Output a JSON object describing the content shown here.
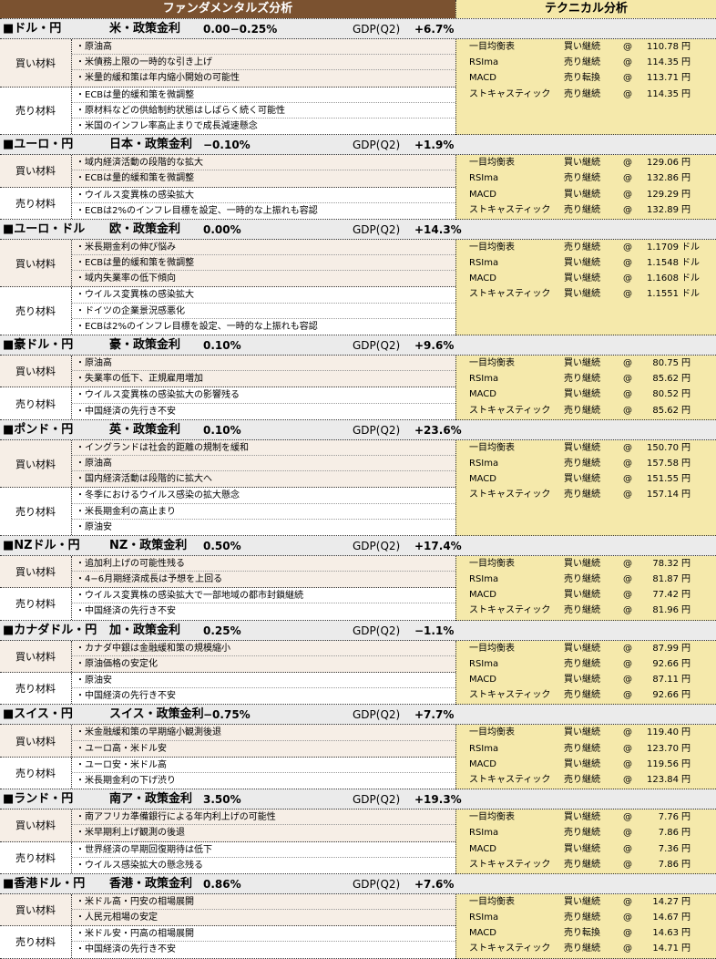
{
  "header": {
    "fundamental_title": "ファンダメンタルズ分析",
    "technical_title": "テクニカル分析"
  },
  "labels": {
    "buy": "買い材料",
    "sell": "売り材料",
    "gdp": "GDP(Q2)",
    "at": "@"
  },
  "colors": {
    "header_brown": "#7b5230",
    "technical_bg": "#f5e9ab",
    "buy_bg": "#f6eee6",
    "title_bg": "#ebebeb"
  },
  "sections": [
    {
      "pair": "■ドル・円",
      "policy": "米・政策金利",
      "rate": "0.00−0.25%",
      "gdp": "+6.7%",
      "buy": [
        "・原油高",
        "・米債務上限の一時的な引き上げ",
        "・米量的緩和策は年内縮小開始の可能性"
      ],
      "sell": [
        "・ECBは量的緩和策を微調整",
        "・原材料などの供給制約状態はしばらく続く可能性",
        "・米国のインフレ率高止まりで成長減速懸念"
      ],
      "tech": [
        {
          "ind": "一目均衡表",
          "sig": "買い継続",
          "val": "110.78",
          "unit": "円"
        },
        {
          "ind": "RSIma",
          "sig": "売り継続",
          "val": "114.35",
          "unit": "円"
        },
        {
          "ind": "MACD",
          "sig": "売り転換",
          "val": "113.71",
          "unit": "円"
        },
        {
          "ind": "ストキャスティック",
          "sig": "売り継続",
          "val": "114.35",
          "unit": "円"
        }
      ]
    },
    {
      "pair": "■ユーロ・円",
      "policy": "日本・政策金利",
      "rate": "−0.10%",
      "gdp": "+1.9%",
      "buy": [
        "・域内経済活動の段階的な拡大",
        "・ECBは量的緩和策を微調整"
      ],
      "sell": [
        "・ウイルス変異株の感染拡大",
        "・ECBは2%のインフレ目標を設定、一時的な上振れも容認"
      ],
      "tech": [
        {
          "ind": "一目均衡表",
          "sig": "買い継続",
          "val": "129.06",
          "unit": "円"
        },
        {
          "ind": "RSIma",
          "sig": "売り継続",
          "val": "132.86",
          "unit": "円"
        },
        {
          "ind": "MACD",
          "sig": "買い継続",
          "val": "129.29",
          "unit": "円"
        },
        {
          "ind": "ストキャスティック",
          "sig": "売り継続",
          "val": "132.89",
          "unit": "円"
        }
      ]
    },
    {
      "pair": "■ユーロ・ドル",
      "policy": "欧・政策金利",
      "rate": "0.00%",
      "gdp": "+14.3%",
      "buy": [
        "・米長期金利の伸び悩み",
        "・ECBは量的緩和策を微調整",
        "・域内失業率の低下傾向"
      ],
      "sell": [
        "・ウイルス変異株の感染拡大",
        "・ドイツの企業景況感悪化",
        "・ECBは2%のインフレ目標を設定、一時的な上振れも容認"
      ],
      "tech": [
        {
          "ind": "一目均衡表",
          "sig": "売り継続",
          "val": "1.1709",
          "unit": "ドル"
        },
        {
          "ind": "RSIma",
          "sig": "買い継続",
          "val": "1.1548",
          "unit": "ドル"
        },
        {
          "ind": "MACD",
          "sig": "買い継続",
          "val": "1.1608",
          "unit": "ドル"
        },
        {
          "ind": "ストキャスティック",
          "sig": "買い継続",
          "val": "1.1551",
          "unit": "ドル"
        }
      ]
    },
    {
      "pair": "■豪ドル・円",
      "policy": "豪・政策金利",
      "rate": "0.10%",
      "gdp": "+9.6%",
      "buy": [
        "・原油高",
        "・失業率の低下、正規雇用増加"
      ],
      "sell": [
        "・ウイルス変異株の感染拡大の影響残る",
        "・中国経済の先行き不安"
      ],
      "tech": [
        {
          "ind": "一目均衡表",
          "sig": "買い継続",
          "val": "80.75",
          "unit": "円"
        },
        {
          "ind": "RSIma",
          "sig": "売り継続",
          "val": "85.62",
          "unit": "円"
        },
        {
          "ind": "MACD",
          "sig": "買い継続",
          "val": "80.52",
          "unit": "円"
        },
        {
          "ind": "ストキャスティック",
          "sig": "売り継続",
          "val": "85.62",
          "unit": "円"
        }
      ]
    },
    {
      "pair": "■ポンド・円",
      "policy": "英・政策金利",
      "rate": "0.10%",
      "gdp": "+23.6%",
      "buy": [
        "・イングランドは社会的距離の規制を緩和",
        "・原油高",
        "・国内経済活動は段階的に拡大へ"
      ],
      "sell": [
        "・冬季におけるウイルス感染の拡大懸念",
        "・米長期金利の高止まり",
        "・原油安"
      ],
      "tech": [
        {
          "ind": "一目均衡表",
          "sig": "買い継続",
          "val": "150.70",
          "unit": "円"
        },
        {
          "ind": "RSIma",
          "sig": "売り継続",
          "val": "157.58",
          "unit": "円"
        },
        {
          "ind": "MACD",
          "sig": "買い継続",
          "val": "151.55",
          "unit": "円"
        },
        {
          "ind": "ストキャスティック",
          "sig": "売り継続",
          "val": "157.14",
          "unit": "円"
        }
      ]
    },
    {
      "pair": "■NZドル・円",
      "policy": "NZ・政策金利",
      "rate": "0.50%",
      "gdp": "+17.4%",
      "buy": [
        "・追加利上げの可能性残る",
        "・4−6月期経済成長は予想を上回る"
      ],
      "sell": [
        "・ウイルス変異株の感染拡大で一部地域の都市封鎖継続",
        "・中国経済の先行き不安"
      ],
      "tech": [
        {
          "ind": "一目均衡表",
          "sig": "買い継続",
          "val": "78.32",
          "unit": "円"
        },
        {
          "ind": "RSIma",
          "sig": "売り継続",
          "val": "81.87",
          "unit": "円"
        },
        {
          "ind": "MACD",
          "sig": "買い継続",
          "val": "77.42",
          "unit": "円"
        },
        {
          "ind": "ストキャスティック",
          "sig": "売り継続",
          "val": "81.96",
          "unit": "円"
        }
      ]
    },
    {
      "pair": "■カナダドル・円",
      "policy": "加・政策金利",
      "rate": "0.25%",
      "gdp": "−1.1%",
      "buy": [
        "・カナダ中銀は金融緩和策の規模縮小",
        "・原油価格の安定化"
      ],
      "sell": [
        "・原油安",
        "・中国経済の先行き不安"
      ],
      "tech": [
        {
          "ind": "一目均衡表",
          "sig": "買い継続",
          "val": "87.99",
          "unit": "円"
        },
        {
          "ind": "RSIma",
          "sig": "売り継続",
          "val": "92.66",
          "unit": "円"
        },
        {
          "ind": "MACD",
          "sig": "買い継続",
          "val": "87.11",
          "unit": "円"
        },
        {
          "ind": "ストキャスティック",
          "sig": "売り継続",
          "val": "92.66",
          "unit": "円"
        }
      ]
    },
    {
      "pair": "■スイス・円",
      "policy": "スイス・政策金利",
      "rate": "−0.75%",
      "gdp": "+7.7%",
      "buy": [
        "・米金融緩和策の早期縮小観測後退",
        "・ユーロ高・米ドル安"
      ],
      "sell": [
        "・ユーロ安・米ドル高",
        "・米長期金利の下げ渋り"
      ],
      "tech": [
        {
          "ind": "一目均衡表",
          "sig": "買い継続",
          "val": "119.40",
          "unit": "円"
        },
        {
          "ind": "RSIma",
          "sig": "売り継続",
          "val": "123.70",
          "unit": "円"
        },
        {
          "ind": "MACD",
          "sig": "買い継続",
          "val": "119.56",
          "unit": "円"
        },
        {
          "ind": "ストキャスティック",
          "sig": "売り継続",
          "val": "123.84",
          "unit": "円"
        }
      ]
    },
    {
      "pair": "■ランド・円",
      "policy": "南ア・政策金利",
      "rate": "3.50%",
      "gdp": "+19.3%",
      "buy": [
        "・南アフリカ準備銀行による年内利上げの可能性",
        "・米早期利上げ観測の後退"
      ],
      "sell": [
        "・世界経済の早期回復期待は低下",
        "・ウイルス感染拡大の懸念残る"
      ],
      "tech": [
        {
          "ind": "一目均衡表",
          "sig": "買い継続",
          "val": "7.76",
          "unit": "円"
        },
        {
          "ind": "RSIma",
          "sig": "売り継続",
          "val": "7.86",
          "unit": "円"
        },
        {
          "ind": "MACD",
          "sig": "買い継続",
          "val": "7.36",
          "unit": "円"
        },
        {
          "ind": "ストキャスティック",
          "sig": "売り継続",
          "val": "7.86",
          "unit": "円"
        }
      ]
    },
    {
      "pair": "■香港ドル・円",
      "policy": "香港・政策金利",
      "rate": "0.86%",
      "gdp": "+7.6%",
      "buy": [
        "・米ドル高・円安の相場展開",
        "・人民元相場の安定"
      ],
      "sell": [
        "・米ドル安・円高の相場展開",
        "・中国経済の先行き不安"
      ],
      "tech": [
        {
          "ind": "一目均衡表",
          "sig": "買い継続",
          "val": "14.27",
          "unit": "円"
        },
        {
          "ind": "RSIma",
          "sig": "売り継続",
          "val": "14.67",
          "unit": "円"
        },
        {
          "ind": "MACD",
          "sig": "売り転換",
          "val": "14.63",
          "unit": "円"
        },
        {
          "ind": "ストキャスティック",
          "sig": "売り継続",
          "val": "14.71",
          "unit": "円"
        }
      ]
    }
  ]
}
